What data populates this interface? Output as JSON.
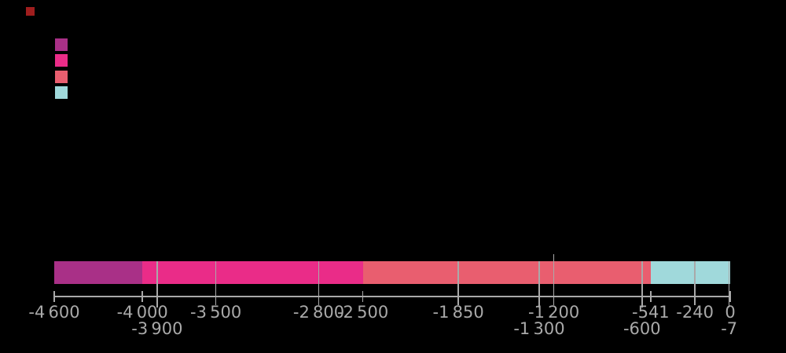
{
  "canvas": {
    "background": "#000000"
  },
  "red_marker": {
    "color": "#A01E1E"
  },
  "legend": {
    "swatches": [
      {
        "color": "#A93087"
      },
      {
        "color": "#EA2C88"
      },
      {
        "color": "#E95E6F"
      },
      {
        "color": "#A0D9DB"
      }
    ]
  },
  "chart_data": {
    "type": "bar",
    "variant": "horizontal-timeline",
    "x_axis": {
      "min": -4600,
      "max": 0
    },
    "segments": [
      {
        "start": -4600,
        "end": -4000,
        "color": "#A93087"
      },
      {
        "start": -4000,
        "end": -2500,
        "color": "#EA2C88"
      },
      {
        "start": -2500,
        "end": -541,
        "color": "#E95E6F"
      },
      {
        "start": -541,
        "end": 0,
        "color": "#A0D9DB"
      }
    ],
    "ticks": [
      {
        "value": -4600,
        "label": "-4 600",
        "row": 1,
        "kind": "boundary"
      },
      {
        "value": -4000,
        "label": "-4 000",
        "row": 1,
        "kind": "boundary"
      },
      {
        "value": -3900,
        "label": "-3 900",
        "row": 2,
        "kind": "event"
      },
      {
        "value": -3500,
        "label": "-3 500",
        "row": 1,
        "kind": "event"
      },
      {
        "value": -2800,
        "label": "-2 800",
        "row": 1,
        "kind": "event"
      },
      {
        "value": -2500,
        "label": "-2 500",
        "row": 1,
        "kind": "boundary"
      },
      {
        "value": -1850,
        "label": "-1 850",
        "row": 1,
        "kind": "event"
      },
      {
        "value": -1300,
        "label": "-1 300",
        "row": 2,
        "kind": "event"
      },
      {
        "value": -1200,
        "label": "-1 200",
        "row": 1,
        "kind": "event",
        "extends_above_bar": true
      },
      {
        "value": -600,
        "label": "-600",
        "row": 2,
        "kind": "event"
      },
      {
        "value": -541,
        "label": "-541",
        "row": 1,
        "kind": "boundary"
      },
      {
        "value": -240,
        "label": "-240",
        "row": 1,
        "kind": "event"
      },
      {
        "value": -7,
        "label": "-7",
        "row": 2,
        "kind": "event"
      },
      {
        "value": 0,
        "label": "0",
        "row": 1,
        "kind": "boundary"
      }
    ],
    "colors": {
      "axis": "#A9A9A9",
      "tick_lines": "#A9A9A9",
      "labels": "#A9A9A9"
    }
  }
}
